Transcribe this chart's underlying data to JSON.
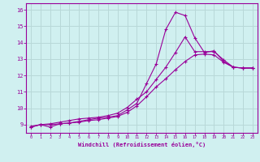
{
  "title": "",
  "xlabel": "Windchill (Refroidissement éolien,°C)",
  "ylabel": "",
  "bg_color": "#d0f0f0",
  "line_color": "#990099",
  "grid_color": "#b8d8d8",
  "spine_color": "#990099",
  "xlim": [
    -0.5,
    23.5
  ],
  "ylim": [
    8.5,
    16.4
  ],
  "xticks": [
    0,
    1,
    2,
    3,
    4,
    5,
    6,
    7,
    8,
    9,
    10,
    11,
    12,
    13,
    14,
    15,
    16,
    17,
    18,
    19,
    20,
    21,
    22,
    23
  ],
  "yticks": [
    9,
    10,
    11,
    12,
    13,
    14,
    15,
    16
  ],
  "line1_x": [
    0,
    1,
    2,
    3,
    4,
    5,
    6,
    7,
    8,
    9,
    10,
    11,
    12,
    13,
    14,
    15,
    16,
    17,
    18,
    19,
    20,
    21,
    22,
    23
  ],
  "line1_y": [
    8.9,
    9.0,
    8.85,
    9.05,
    9.1,
    9.2,
    9.3,
    9.4,
    9.45,
    9.55,
    9.9,
    10.3,
    11.5,
    12.7,
    14.8,
    15.85,
    15.65,
    14.3,
    13.4,
    13.5,
    12.85,
    12.5,
    12.45,
    12.45
  ],
  "line2_x": [
    0,
    1,
    2,
    3,
    4,
    5,
    6,
    7,
    8,
    9,
    10,
    11,
    12,
    13,
    14,
    15,
    16,
    17,
    18,
    19,
    20,
    21,
    22,
    23
  ],
  "line2_y": [
    8.85,
    9.0,
    9.05,
    9.15,
    9.25,
    9.35,
    9.4,
    9.45,
    9.55,
    9.7,
    10.05,
    10.55,
    11.0,
    11.75,
    12.5,
    13.4,
    14.35,
    13.45,
    13.45,
    13.45,
    12.95,
    12.5,
    12.45,
    12.45
  ],
  "line3_x": [
    0,
    1,
    2,
    3,
    4,
    5,
    6,
    7,
    8,
    9,
    10,
    11,
    12,
    13,
    14,
    15,
    16,
    17,
    18,
    19,
    20,
    21,
    22,
    23
  ],
  "line3_y": [
    8.85,
    9.0,
    9.0,
    9.05,
    9.1,
    9.15,
    9.25,
    9.3,
    9.4,
    9.5,
    9.75,
    10.15,
    10.7,
    11.3,
    11.8,
    12.35,
    12.85,
    13.25,
    13.3,
    13.25,
    12.8,
    12.5,
    12.45,
    12.45
  ]
}
